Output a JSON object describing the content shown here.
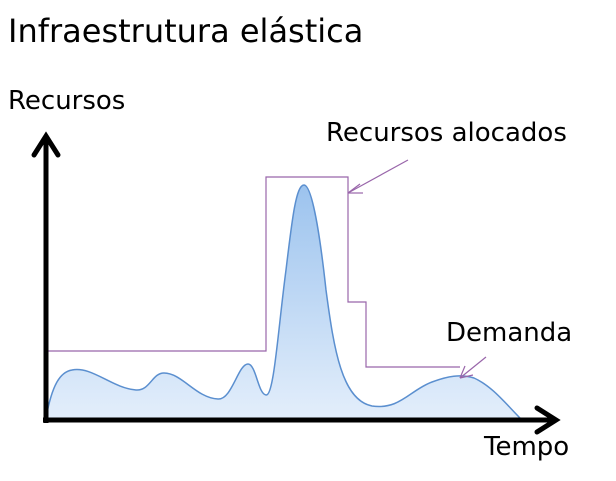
{
  "diagram": {
    "title": "Infraestrutura elástica",
    "y_axis_label": "Recursos",
    "x_axis_label": "Tempo",
    "allocated_label": "Recursos alocados",
    "demand_label": "Demanda"
  },
  "colors": {
    "axis": "#000000",
    "allocated_line": "#9966aa",
    "demand_line": "#5b8fcf",
    "demand_fill_top": "#9cc3ee",
    "demand_fill_bottom": "#e3eefb",
    "callout_arrow": "#9966aa",
    "text": "#000000"
  }
}
